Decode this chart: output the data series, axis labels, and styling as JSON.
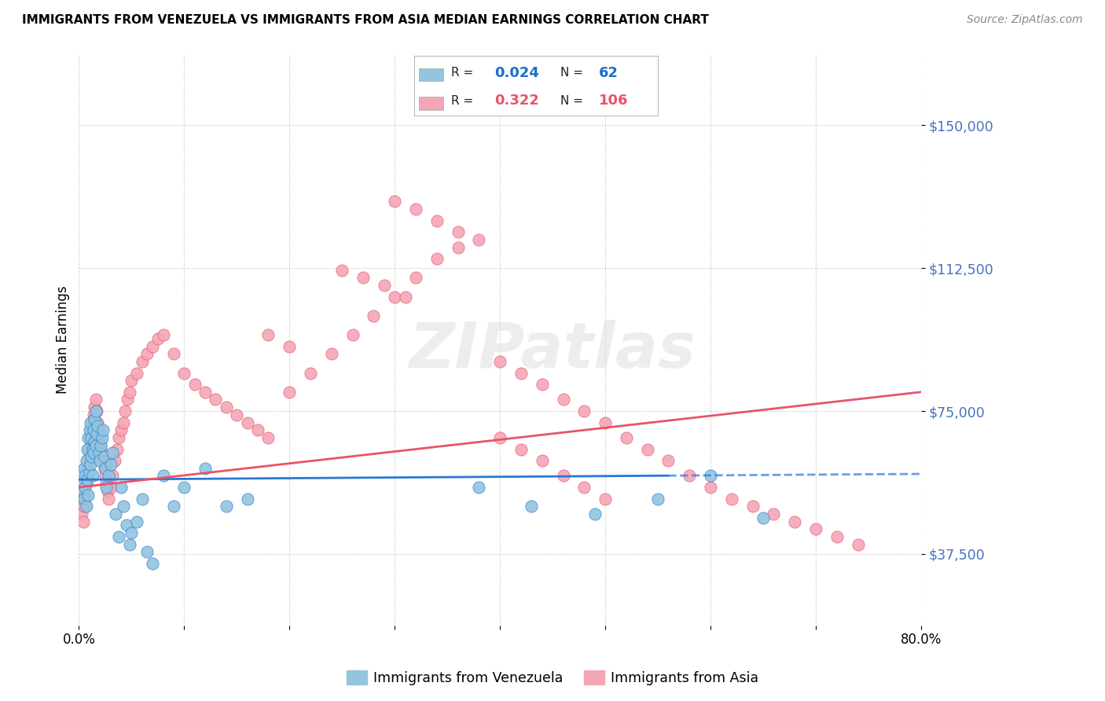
{
  "title": "IMMIGRANTS FROM VENEZUELA VS IMMIGRANTS FROM ASIA MEDIAN EARNINGS CORRELATION CHART",
  "source": "Source: ZipAtlas.com",
  "ylabel": "Median Earnings",
  "xlim": [
    0.0,
    0.8
  ],
  "ylim": [
    18750,
    168750
  ],
  "yticks": [
    37500,
    75000,
    112500,
    150000
  ],
  "ytick_labels": [
    "$37,500",
    "$75,000",
    "$112,500",
    "$150,000"
  ],
  "xticks": [
    0.0,
    0.1,
    0.2,
    0.3,
    0.4,
    0.5,
    0.6,
    0.7,
    0.8
  ],
  "xtick_display": [
    "0.0%",
    "",
    "",
    "",
    "",
    "",
    "",
    "",
    "80.0%"
  ],
  "blue_color": "#92c5de",
  "pink_color": "#f4a6b5",
  "blue_line_color": "#2979d4",
  "pink_line_color": "#e8546a",
  "blue_R": "0.024",
  "blue_N": "62",
  "pink_R": "0.322",
  "pink_N": "106",
  "legend_label_blue": "Immigrants from Venezuela",
  "legend_label_pink": "Immigrants from Asia",
  "blue_scatter_x": [
    0.003,
    0.004,
    0.005,
    0.005,
    0.006,
    0.006,
    0.007,
    0.007,
    0.008,
    0.008,
    0.009,
    0.009,
    0.01,
    0.01,
    0.011,
    0.011,
    0.012,
    0.012,
    0.013,
    0.013,
    0.014,
    0.014,
    0.015,
    0.015,
    0.016,
    0.016,
    0.017,
    0.018,
    0.019,
    0.02,
    0.021,
    0.022,
    0.023,
    0.024,
    0.025,
    0.026,
    0.028,
    0.03,
    0.032,
    0.035,
    0.038,
    0.04,
    0.042,
    0.045,
    0.048,
    0.05,
    0.055,
    0.06,
    0.065,
    0.07,
    0.08,
    0.09,
    0.1,
    0.12,
    0.14,
    0.16,
    0.38,
    0.43,
    0.49,
    0.55,
    0.6,
    0.65
  ],
  "blue_scatter_y": [
    56000,
    54000,
    60000,
    52000,
    58000,
    55000,
    62000,
    50000,
    65000,
    57000,
    68000,
    53000,
    70000,
    59000,
    72000,
    61000,
    68000,
    63000,
    65000,
    58000,
    70000,
    64000,
    67000,
    73000,
    75000,
    66000,
    69000,
    71000,
    64000,
    62000,
    66000,
    68000,
    70000,
    63000,
    60000,
    55000,
    58000,
    61000,
    64000,
    48000,
    42000,
    55000,
    50000,
    45000,
    40000,
    43000,
    46000,
    52000,
    38000,
    35000,
    58000,
    50000,
    55000,
    60000,
    50000,
    52000,
    55000,
    50000,
    48000,
    52000,
    58000,
    47000
  ],
  "pink_scatter_x": [
    0.003,
    0.004,
    0.005,
    0.005,
    0.006,
    0.006,
    0.007,
    0.007,
    0.008,
    0.008,
    0.009,
    0.009,
    0.01,
    0.01,
    0.011,
    0.011,
    0.012,
    0.012,
    0.013,
    0.014,
    0.015,
    0.015,
    0.016,
    0.017,
    0.018,
    0.019,
    0.02,
    0.021,
    0.022,
    0.023,
    0.024,
    0.025,
    0.026,
    0.027,
    0.028,
    0.03,
    0.032,
    0.034,
    0.036,
    0.038,
    0.04,
    0.042,
    0.044,
    0.046,
    0.048,
    0.05,
    0.055,
    0.06,
    0.065,
    0.07,
    0.075,
    0.08,
    0.09,
    0.1,
    0.11,
    0.12,
    0.13,
    0.14,
    0.15,
    0.16,
    0.17,
    0.18,
    0.2,
    0.22,
    0.24,
    0.26,
    0.28,
    0.3,
    0.32,
    0.34,
    0.36,
    0.38,
    0.4,
    0.42,
    0.44,
    0.46,
    0.48,
    0.5,
    0.52,
    0.54,
    0.56,
    0.58,
    0.6,
    0.62,
    0.64,
    0.66,
    0.68,
    0.7,
    0.72,
    0.74,
    0.3,
    0.32,
    0.34,
    0.36,
    0.25,
    0.27,
    0.29,
    0.31,
    0.4,
    0.42,
    0.44,
    0.46,
    0.48,
    0.5,
    0.18,
    0.2
  ],
  "pink_scatter_y": [
    48000,
    46000,
    52000,
    50000,
    55000,
    53000,
    58000,
    56000,
    60000,
    58000,
    62000,
    60000,
    65000,
    63000,
    68000,
    66000,
    70000,
    68000,
    72000,
    74000,
    76000,
    73000,
    78000,
    75000,
    72000,
    70000,
    68000,
    66000,
    64000,
    62000,
    60000,
    58000,
    56000,
    54000,
    52000,
    55000,
    58000,
    62000,
    65000,
    68000,
    70000,
    72000,
    75000,
    78000,
    80000,
    83000,
    85000,
    88000,
    90000,
    92000,
    94000,
    95000,
    90000,
    85000,
    82000,
    80000,
    78000,
    76000,
    74000,
    72000,
    70000,
    68000,
    80000,
    85000,
    90000,
    95000,
    100000,
    105000,
    110000,
    115000,
    118000,
    120000,
    88000,
    85000,
    82000,
    78000,
    75000,
    72000,
    68000,
    65000,
    62000,
    58000,
    55000,
    52000,
    50000,
    48000,
    46000,
    44000,
    42000,
    40000,
    130000,
    128000,
    125000,
    122000,
    112000,
    110000,
    108000,
    105000,
    68000,
    65000,
    62000,
    58000,
    55000,
    52000,
    95000,
    92000
  ]
}
